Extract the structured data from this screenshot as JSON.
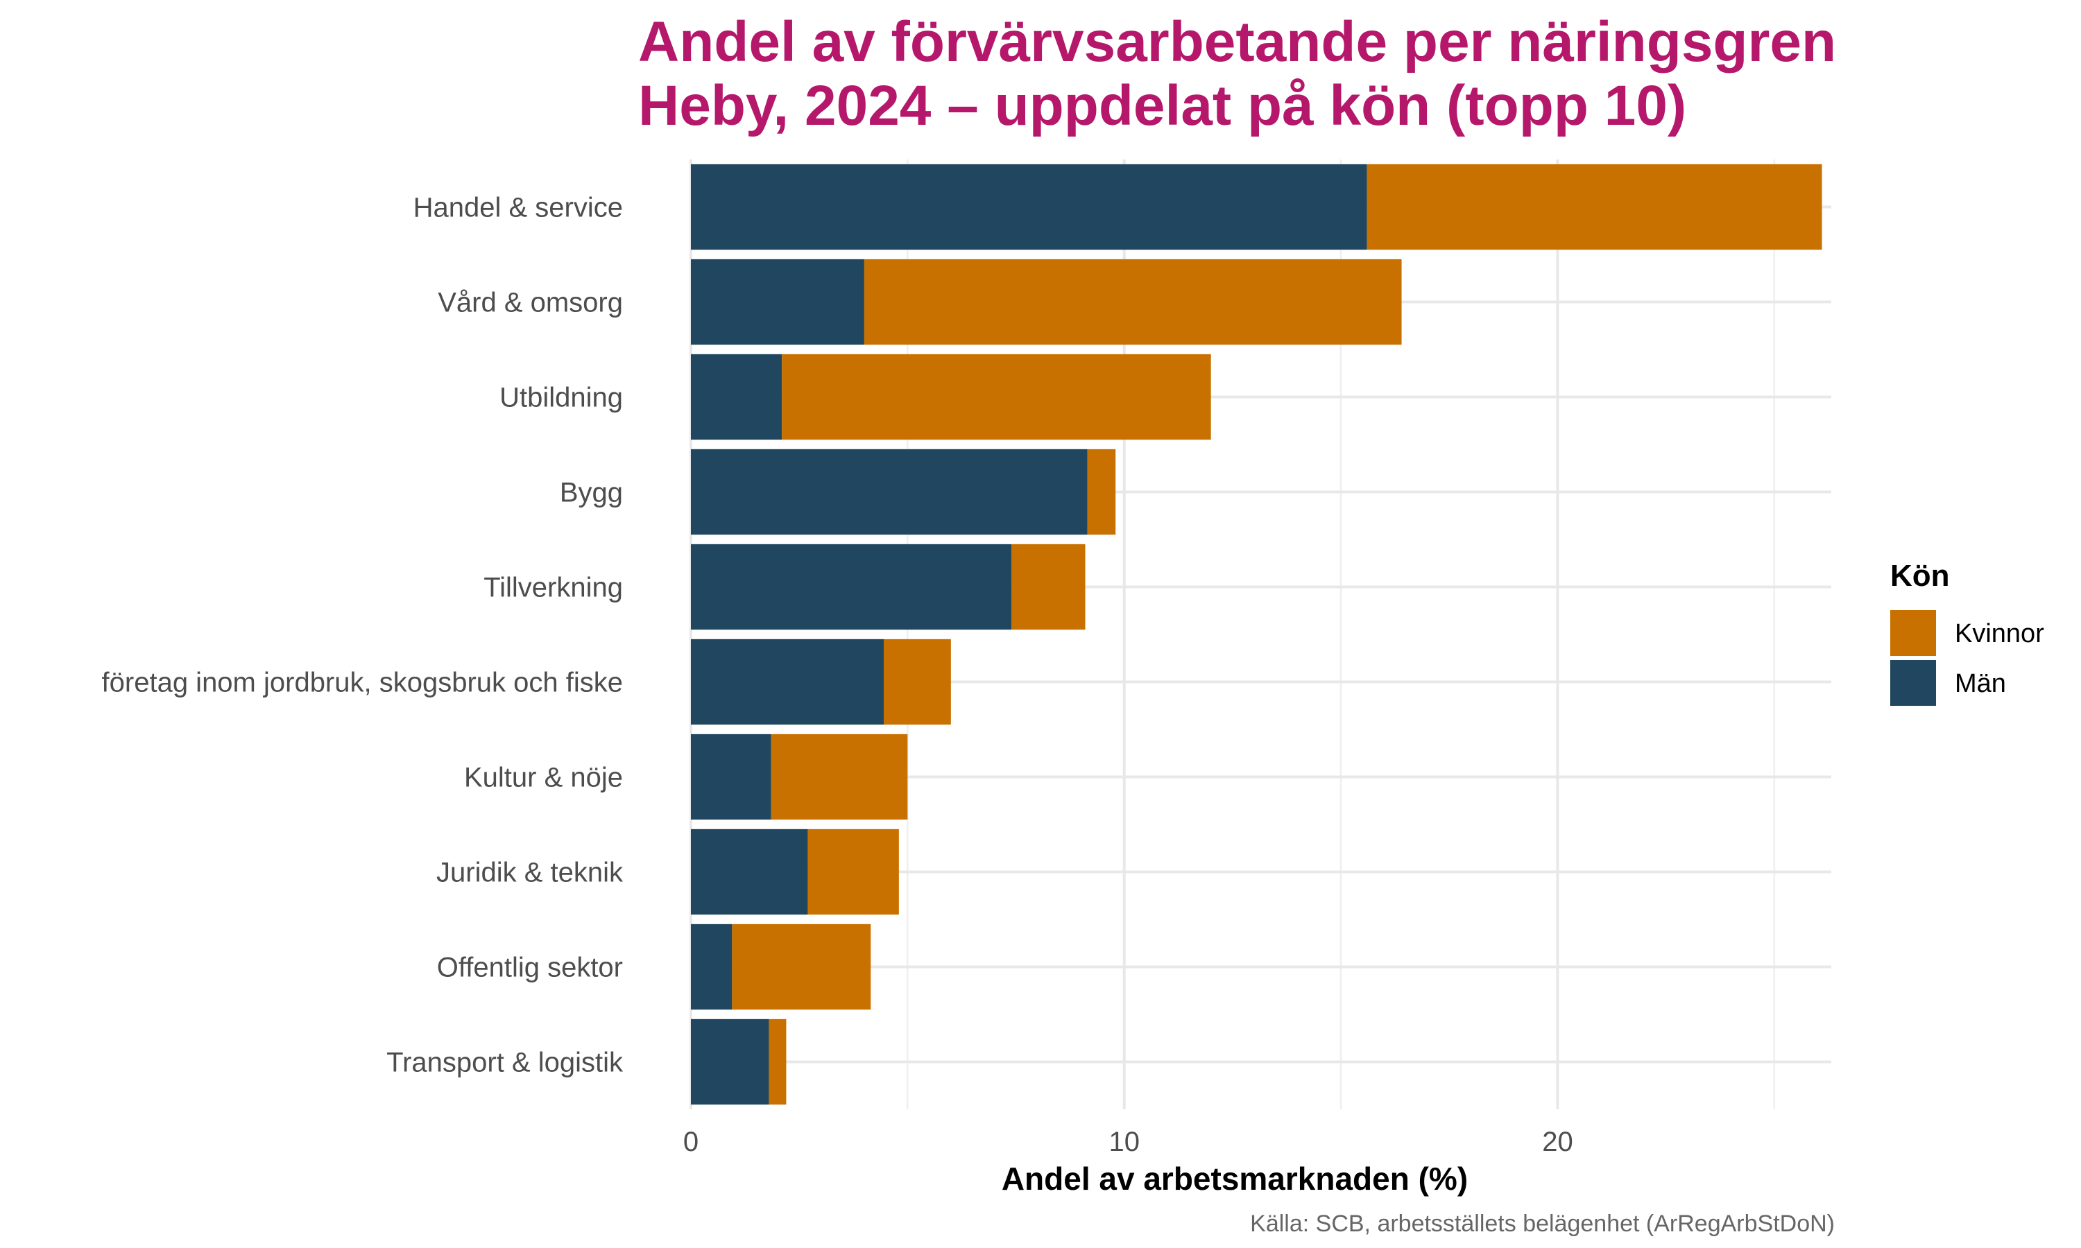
{
  "chart_data": {
    "type": "bar",
    "orientation": "horizontal",
    "stacked": true,
    "title": [
      "Andel av förvärvsarbetande per näringsgren",
      "Heby, 2024 – uppdelat på kön (topp 10)"
    ],
    "xlabel": "Andel av arbetsmarknaden (%)",
    "ylabel": "",
    "caption": "Källa: SCB, arbetsställets belägenhet (ArRegArbStDoN)",
    "xlim": [
      0,
      27.5
    ],
    "xticks": [
      0,
      10,
      20
    ],
    "grid": true,
    "legend": {
      "title": "Kön",
      "placement": "right",
      "entries": [
        "Kvinnor",
        "Män"
      ]
    },
    "categories": [
      "Handel & service",
      "Vård & omsorg",
      "Utbildning",
      "Bygg",
      "Tillverkning",
      "företag inom jordbruk, skogsbruk och fiske",
      "Kultur & nöje",
      "Juridik & teknik",
      "Offentlig sektor",
      "Transport & logistik"
    ],
    "series": [
      {
        "name": "Män",
        "color": "#20475F",
        "values": [
          15.6,
          4.0,
          2.1,
          9.15,
          7.4,
          4.45,
          1.85,
          2.7,
          0.95,
          1.8
        ]
      },
      {
        "name": "Kvinnor",
        "color": "#C87100",
        "values": [
          10.5,
          12.4,
          9.9,
          0.65,
          1.7,
          1.55,
          3.15,
          2.1,
          3.2,
          0.4
        ]
      }
    ]
  }
}
